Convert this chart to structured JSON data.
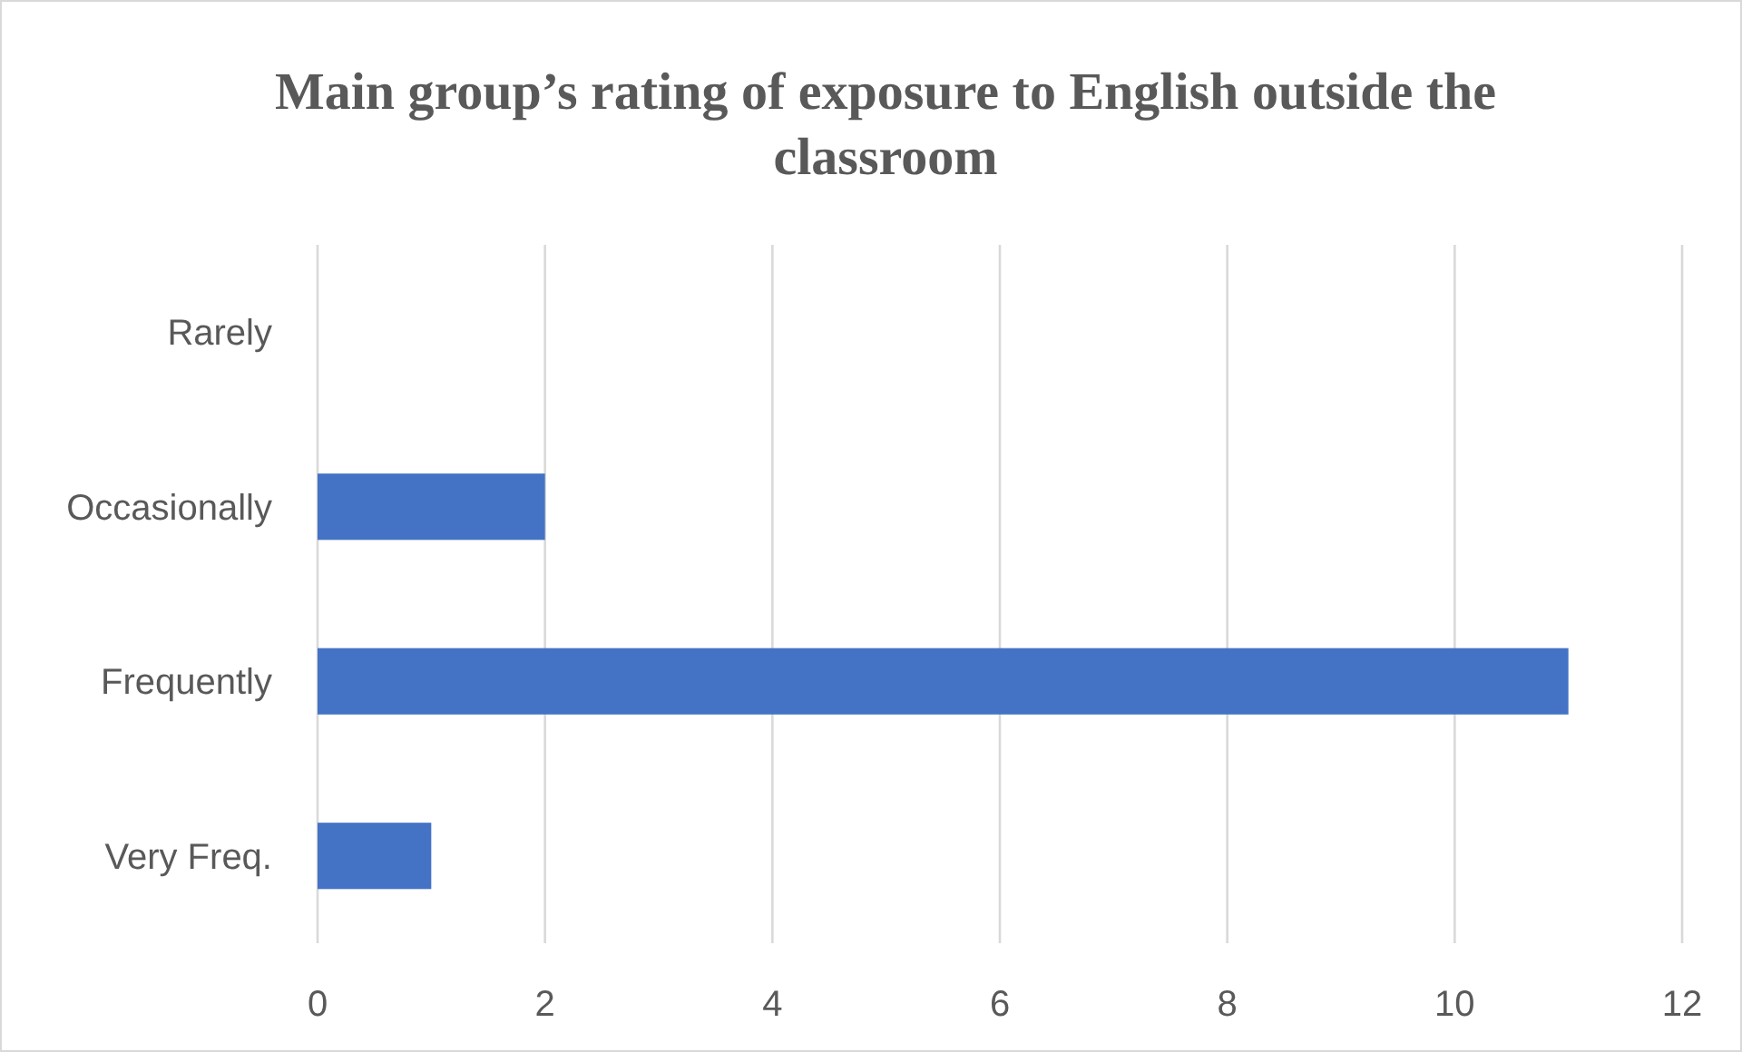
{
  "chart_data": {
    "type": "bar",
    "orientation": "horizontal",
    "title": "Main group’s rating of exposure to English outside the classroom",
    "categories": [
      "Rarely",
      "Occasionally",
      "Frequently",
      "Very Freq."
    ],
    "values": [
      0,
      2,
      11,
      1
    ],
    "color": "#4472c4",
    "xlim": [
      0,
      12
    ],
    "xticks": [
      0,
      2,
      4,
      6,
      8,
      10,
      12
    ],
    "grid": "x"
  }
}
